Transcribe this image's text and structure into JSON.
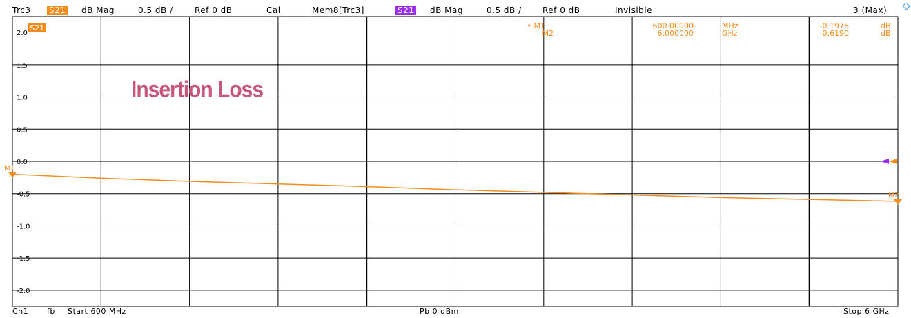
{
  "header": {
    "trace": "Trc3",
    "param": "S21",
    "format": "dB Mag",
    "scale": "0.5 dB /",
    "ref": "Ref 0 dB",
    "cal": "Cal",
    "mem_trace": "Mem8[Trc3]",
    "mem_param": "S21",
    "mem_format": "dB Mag",
    "mem_scale": "0.5 dB /",
    "mem_ref": "Ref 0 dB",
    "mem_state": "Invisible",
    "channel_max": "3 (Max)"
  },
  "footer": {
    "channel": "Ch1",
    "fb": "fb",
    "start": "Start 600 MHz",
    "power": "Pb   0 dBm",
    "stop": "Stop  6 GHz"
  },
  "colors": {
    "trace": "#f28c1e",
    "memory": "#9b30e8",
    "annotation": "#c8557a",
    "grid": "#000000"
  },
  "chart_data": {
    "type": "line",
    "annotation": "Insertion Loss",
    "trace_label": "S21",
    "ylim": [
      -2.0,
      2.0
    ],
    "y_ticks": [
      2.0,
      1.5,
      1.0,
      0.5,
      0.0,
      -0.5,
      -1.0,
      -1.5,
      -2.0
    ],
    "y_tick_labels": [
      "2.0",
      "1.5",
      "1.0",
      "0.5",
      "0.0",
      "-0.5",
      "-1.0",
      "-1.5",
      "-2.0"
    ],
    "x_range_ghz": [
      0.6,
      6.0
    ],
    "x_divisions": 10,
    "grid": true,
    "series": [
      {
        "x": [
          0.6,
          1.14,
          1.68,
          2.22,
          2.76,
          3.3,
          3.84,
          4.38,
          4.92,
          5.46,
          6.0
        ],
        "values": [
          -0.198,
          -0.26,
          -0.31,
          -0.35,
          -0.39,
          -0.44,
          -0.48,
          -0.52,
          -0.56,
          -0.59,
          -0.619
        ]
      }
    ],
    "markers": [
      {
        "name": "M1",
        "x_ghz": 0.6,
        "y": -0.1976,
        "active": true,
        "freq": "600.00000",
        "freq_unit": "MHz",
        "value": "-0.1976",
        "unit": "dB"
      },
      {
        "name": "M2",
        "x_ghz": 6.0,
        "y": -0.619,
        "active": false,
        "freq": "6.000000",
        "freq_unit": "GHz",
        "value": "-0.6190",
        "unit": "dB"
      }
    ]
  }
}
